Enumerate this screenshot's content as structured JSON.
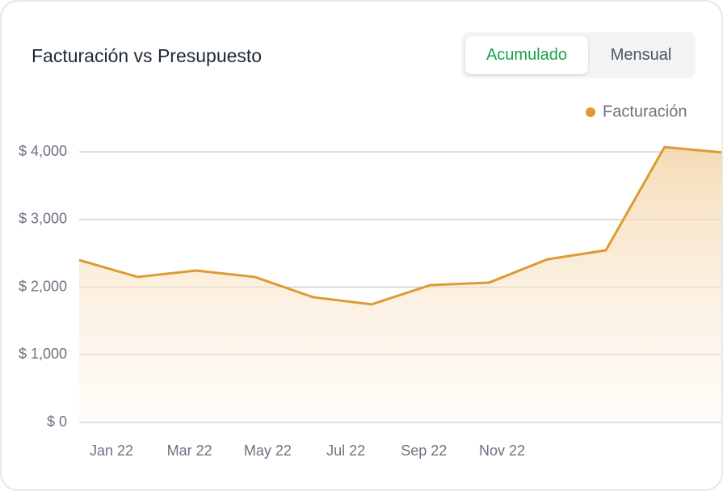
{
  "header": {
    "title": "Facturación vs Presupuesto",
    "toggle": [
      "Acumulado",
      "Mensual"
    ]
  },
  "chart_data": {
    "type": "area",
    "series": [
      {
        "name": "Facturación",
        "color": "#dd9a35",
        "values": [
          2400,
          2150,
          2245,
          2150,
          1850,
          1745,
          2030,
          2065,
          2410,
          2545,
          4070,
          3990
        ]
      }
    ],
    "x_labels": [
      "Jan 22",
      "Mar 22",
      "May 22",
      "Jul 22",
      "Sep 22",
      "Nov 22"
    ],
    "ylim": [
      0,
      4000
    ],
    "yticks": [
      {
        "value": 0,
        "label": "$ 0"
      },
      {
        "value": 1000,
        "label": "$ 1,000"
      },
      {
        "value": 2000,
        "label": "$ 2,000"
      },
      {
        "value": 3000,
        "label": "$ 3,000"
      },
      {
        "value": 4000,
        "label": "$ 4,000"
      }
    ],
    "grid": true,
    "legend": "top-right"
  }
}
